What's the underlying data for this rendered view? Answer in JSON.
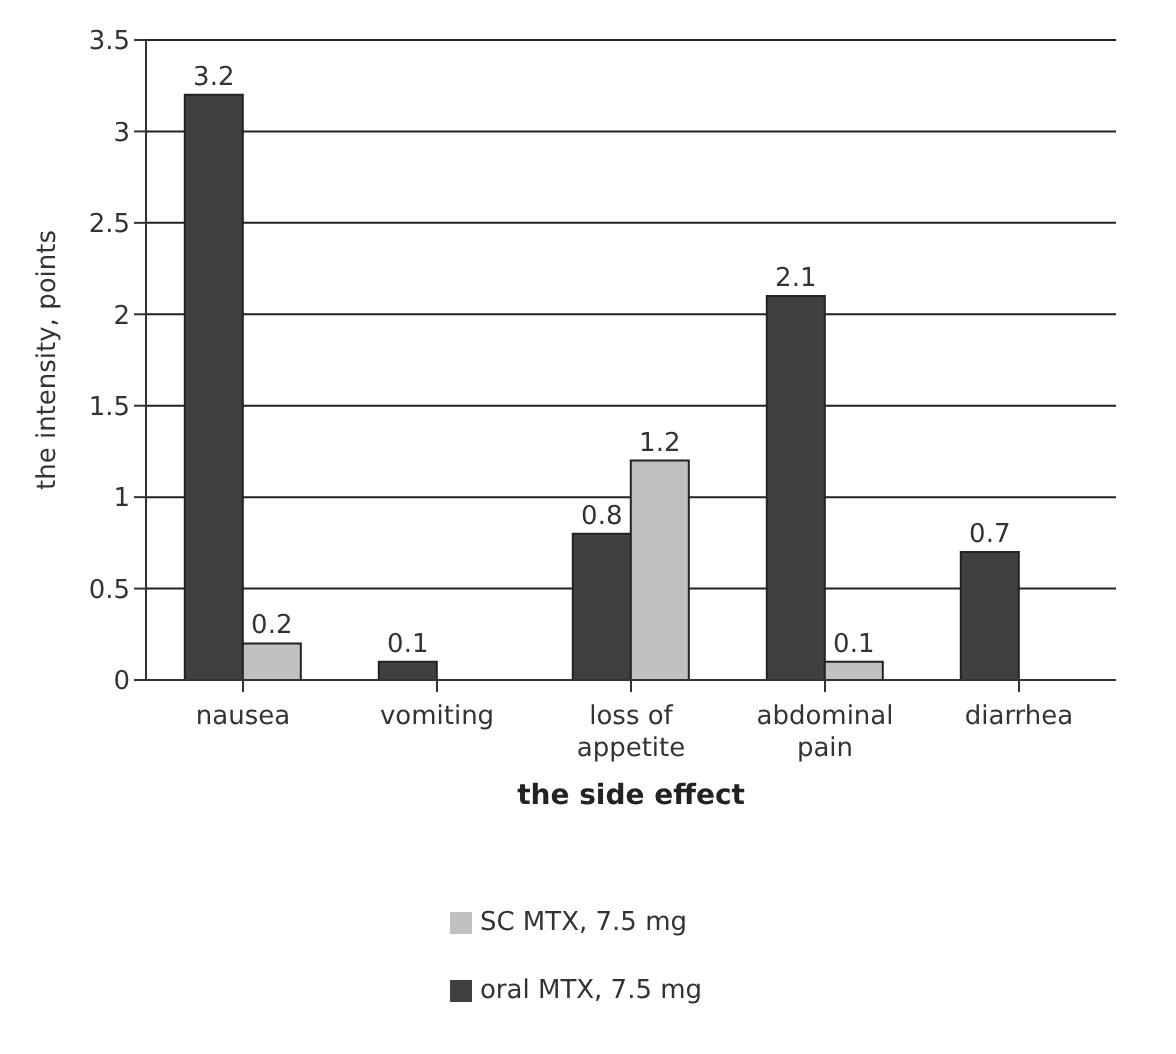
{
  "chart_data": {
    "type": "bar",
    "xlabel": "the side effect",
    "ylabel": "the intensity, points",
    "categories": [
      "nausea",
      "vomiting",
      "loss of appetite",
      "abdominal pain",
      "diarrhea"
    ],
    "series": [
      {
        "name": "oral MTX, 7.5 mg",
        "color": "#404040",
        "values": [
          3.2,
          0.1,
          0.8,
          2.1,
          0.7
        ]
      },
      {
        "name": "SC MTX, 7.5 mg",
        "color": "#c0c0c0",
        "values": [
          0.2,
          null,
          1.2,
          0.1,
          null
        ]
      }
    ],
    "ylim": [
      0,
      3.5
    ],
    "yticks": [
      0,
      0.5,
      1,
      1.5,
      2,
      2.5,
      3,
      3.5
    ],
    "grid": "y",
    "legend": "bottom",
    "data_labels": true
  }
}
